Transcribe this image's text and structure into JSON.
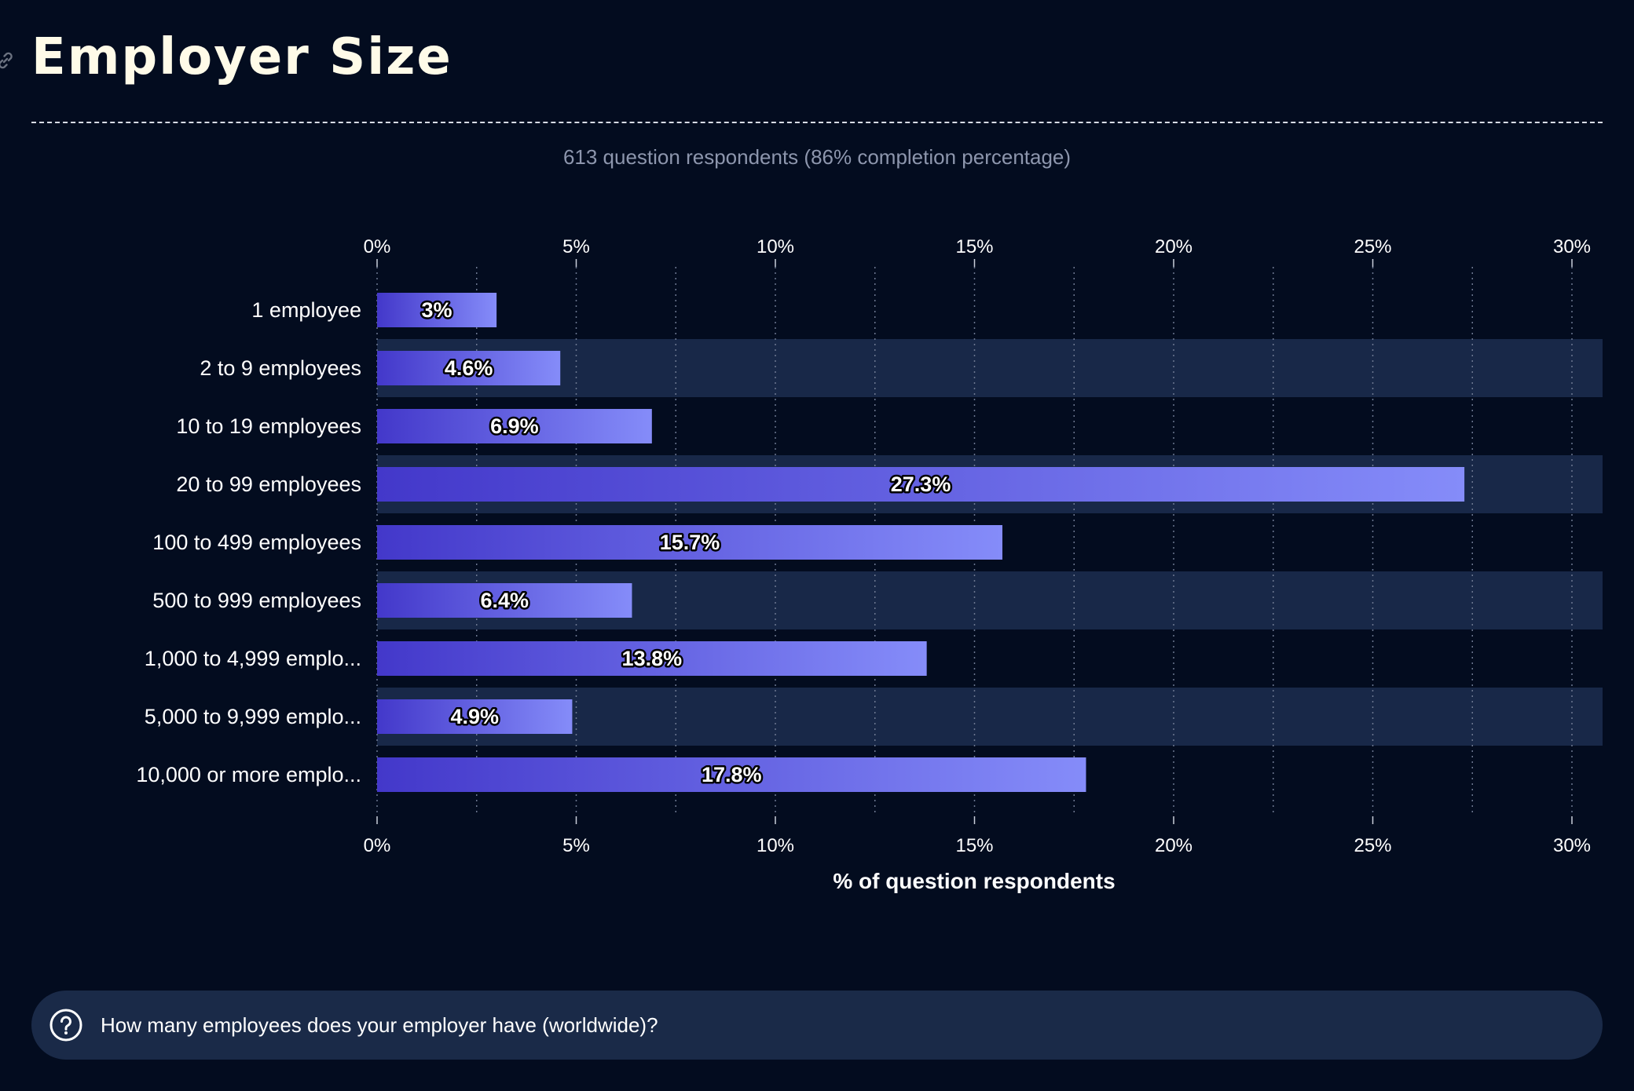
{
  "header": {
    "title": "Employer Size",
    "subtitle": "613 question respondents (86% completion percentage)",
    "anchor_icon": "link-icon"
  },
  "footer": {
    "question": "How many employees does your employer have (worldwide)?",
    "icon": "question-circle-icon"
  },
  "colors": {
    "background": "#030c1f",
    "stripe": "#182848",
    "bar_start": "#4338ca",
    "bar_end": "#858cf9",
    "footer_bg": "#1a2a48"
  },
  "chart_data": {
    "type": "bar",
    "orientation": "horizontal",
    "categories": [
      "1 employee",
      "2 to 9 employees",
      "10 to 19 employees",
      "20 to 99 employees",
      "100 to 499 employees",
      "500 to 999 employees",
      "1,000 to 4,999 emplo...",
      "5,000 to 9,999 emplo...",
      "10,000 or more emplo..."
    ],
    "values": [
      3,
      4.6,
      6.9,
      27.3,
      15.7,
      6.4,
      13.8,
      4.9,
      17.8
    ],
    "value_labels": [
      "3%",
      "4.6%",
      "6.9%",
      "27.3%",
      "15.7%",
      "6.4%",
      "13.8%",
      "4.9%",
      "17.8%"
    ],
    "xticks": [
      0,
      5,
      10,
      15,
      20,
      25,
      30
    ],
    "xtick_labels": [
      "0%",
      "5%",
      "10%",
      "15%",
      "20%",
      "25%",
      "30%"
    ],
    "xlim": [
      0,
      30.8
    ],
    "xlabel": "% of question respondents",
    "ylabel": "",
    "grid": "vertical dotted, every 2.5%",
    "tick_labels_top_and_bottom": true
  }
}
